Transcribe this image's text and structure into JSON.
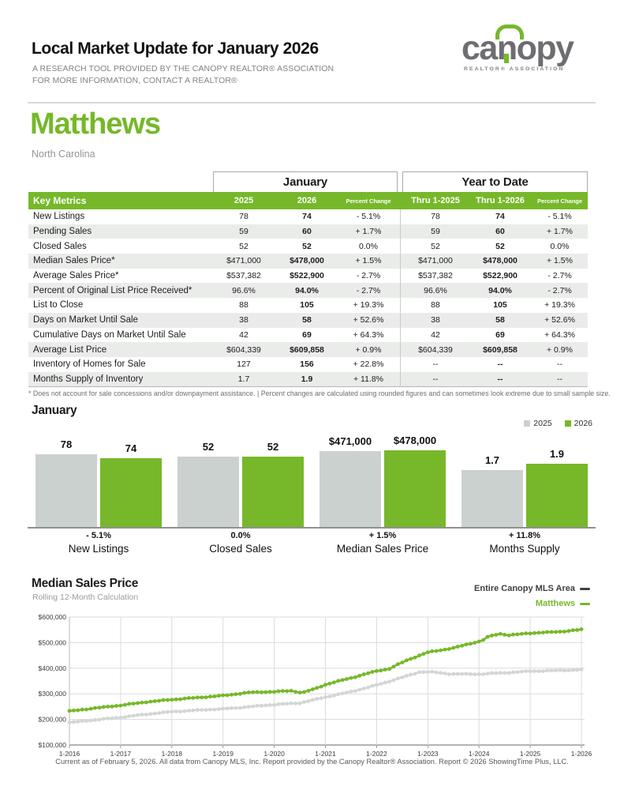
{
  "header": {
    "title": "Local Market Update for January 2026",
    "subtitle1": "A RESEARCH TOOL PROVIDED BY THE CANOPY REALTOR® ASSOCIATION",
    "subtitle2": "FOR MORE INFORMATION, CONTACT A REALTOR®"
  },
  "logo": {
    "wordmark_left": "ca",
    "wordmark_n": "n",
    "wordmark_right": "opy",
    "tagline": "REALTOR® ASSOCIATION"
  },
  "location": {
    "city": "Matthews",
    "state": "North Carolina"
  },
  "colors": {
    "green": "#76b82a",
    "bar_gray": "#cbd1ce",
    "line_gray": "#d3d7d4",
    "dark": "#404041"
  },
  "table": {
    "group_headers": [
      "January",
      "Year to Date"
    ],
    "key_metrics_label": "Key Metrics",
    "columns": [
      "2025",
      "2026",
      "Percent Change",
      "Thru 1-2025",
      "Thru 1-2026",
      "Percent Change"
    ],
    "rows": [
      {
        "metric": "New Listings",
        "values": [
          "78",
          "74",
          "- 5.1%",
          "78",
          "74",
          "- 5.1%"
        ]
      },
      {
        "metric": "Pending Sales",
        "values": [
          "59",
          "60",
          "+ 1.7%",
          "59",
          "60",
          "+ 1.7%"
        ]
      },
      {
        "metric": "Closed Sales",
        "values": [
          "52",
          "52",
          "0.0%",
          "52",
          "52",
          "0.0%"
        ]
      },
      {
        "metric": "Median Sales Price*",
        "values": [
          "$471,000",
          "$478,000",
          "+ 1.5%",
          "$471,000",
          "$478,000",
          "+ 1.5%"
        ]
      },
      {
        "metric": "Average Sales Price*",
        "values": [
          "$537,382",
          "$522,900",
          "- 2.7%",
          "$537,382",
          "$522,900",
          "- 2.7%"
        ]
      },
      {
        "metric": "Percent of Original List Price Received*",
        "values": [
          "96.6%",
          "94.0%",
          "- 2.7%",
          "96.6%",
          "94.0%",
          "- 2.7%"
        ]
      },
      {
        "metric": "List to Close",
        "values": [
          "88",
          "105",
          "+ 19.3%",
          "88",
          "105",
          "+ 19.3%"
        ]
      },
      {
        "metric": "Days on Market Until Sale",
        "values": [
          "38",
          "58",
          "+ 52.6%",
          "38",
          "58",
          "+ 52.6%"
        ]
      },
      {
        "metric": "Cumulative Days on Market Until Sale",
        "values": [
          "42",
          "69",
          "+ 64.3%",
          "42",
          "69",
          "+ 64.3%"
        ]
      },
      {
        "metric": "Average List Price",
        "values": [
          "$604,339",
          "$609,858",
          "+ 0.9%",
          "$604,339",
          "$609,858",
          "+ 0.9%"
        ]
      },
      {
        "metric": "Inventory of Homes for Sale",
        "values": [
          "127",
          "156",
          "+ 22.8%",
          "--",
          "--",
          "--"
        ]
      },
      {
        "metric": "Months Supply of Inventory",
        "values": [
          "1.7",
          "1.9",
          "+ 11.8%",
          "--",
          "--",
          "--"
        ]
      }
    ],
    "footnote": "* Does not account for sale concessions and/or downpayment assistance.  |  Percent changes are calculated using rounded figures and can sometimes look extreme due to small sample size."
  },
  "chart_data": [
    {
      "type": "bar",
      "title": "January",
      "legend": [
        "2025",
        "2026"
      ],
      "categories": [
        "New Listings",
        "Closed Sales",
        "Median Sales Price",
        "Months Supply"
      ],
      "series": [
        {
          "name": "2025",
          "values": [
            78,
            52,
            471000,
            1.7
          ]
        },
        {
          "name": "2026",
          "values": [
            74,
            52,
            478000,
            1.9
          ]
        }
      ],
      "groups": [
        {
          "label": "New Listings",
          "change": "- 5.1%",
          "display": [
            "78",
            "74"
          ],
          "values": [
            78,
            74
          ]
        },
        {
          "label": "Closed Sales",
          "change": "0.0%",
          "display": [
            "52",
            "52"
          ],
          "values": [
            52,
            52
          ]
        },
        {
          "label": "Median Sales Price",
          "change": "+ 1.5%",
          "display": [
            "$471,000",
            "$478,000"
          ],
          "values": [
            471000,
            478000
          ]
        },
        {
          "label": "Months Supply",
          "change": "+ 11.8%",
          "display": [
            "1.7",
            "1.9"
          ],
          "values": [
            1.7,
            1.9
          ]
        }
      ]
    },
    {
      "type": "line",
      "title": "Median Sales Price",
      "subtitle": "Rolling 12-Month Calculation",
      "ylabels": [
        "$600,000",
        "$500,000",
        "$400,000",
        "$300,000",
        "$200,000",
        "$100,000"
      ],
      "ylim": [
        100000,
        600000
      ],
      "xlabels": [
        "1-2016",
        "1-2017",
        "1-2018",
        "1-2019",
        "1-2020",
        "1-2021",
        "1-2022",
        "1-2023",
        "1-2024",
        "1-2025",
        "1-2026"
      ],
      "series": [
        {
          "name": "Entire Canopy MLS Area",
          "color_key": "dark",
          "line_color_key": "line_gray",
          "anchors": [
            [
              2016.0,
              188000
            ],
            [
              2016.5,
              198000
            ],
            [
              2017.0,
              208000
            ],
            [
              2017.5,
              220000
            ],
            [
              2018.0,
              230000
            ],
            [
              2018.5,
              236000
            ],
            [
              2019.0,
              241000
            ],
            [
              2019.5,
              249000
            ],
            [
              2020.0,
              258000
            ],
            [
              2020.5,
              264000
            ],
            [
              2021.0,
              287000
            ],
            [
              2021.5,
              308000
            ],
            [
              2022.0,
              334000
            ],
            [
              2022.5,
              364000
            ],
            [
              2022.85,
              386000
            ],
            [
              2023.1,
              385000
            ],
            [
              2023.4,
              378000
            ],
            [
              2023.7,
              377000
            ],
            [
              2024.0,
              377000
            ],
            [
              2024.5,
              382000
            ],
            [
              2025.0,
              388000
            ],
            [
              2025.5,
              391000
            ],
            [
              2026.0,
              394000
            ]
          ]
        },
        {
          "name": "Matthews",
          "color_key": "green",
          "line_color_key": "green",
          "anchors": [
            [
              2016.0,
              232000
            ],
            [
              2016.5,
              244000
            ],
            [
              2017.0,
              255000
            ],
            [
              2017.5,
              268000
            ],
            [
              2018.0,
              277500
            ],
            [
              2018.5,
              285000
            ],
            [
              2019.0,
              293000
            ],
            [
              2019.5,
              305000
            ],
            [
              2019.75,
              307000
            ],
            [
              2020.0,
              308000
            ],
            [
              2020.33,
              312000
            ],
            [
              2020.55,
              304000
            ],
            [
              2020.8,
              320000
            ],
            [
              2021.0,
              336000
            ],
            [
              2021.5,
              362000
            ],
            [
              2022.0,
              389000
            ],
            [
              2022.25,
              398000
            ],
            [
              2022.6,
              432000
            ],
            [
              2023.0,
              462000
            ],
            [
              2023.3,
              472000
            ],
            [
              2023.5,
              479000
            ],
            [
              2023.9,
              500000
            ],
            [
              2024.05,
              506000
            ],
            [
              2024.17,
              522000
            ],
            [
              2024.4,
              535000
            ],
            [
              2024.58,
              529000
            ],
            [
              2024.8,
              533000
            ],
            [
              2025.0,
              537000
            ],
            [
              2025.3,
              540000
            ],
            [
              2025.6,
              543000
            ],
            [
              2025.85,
              548000
            ],
            [
              2026.0,
              551000
            ]
          ]
        }
      ]
    }
  ],
  "footer": "Current as of February 5, 2026. All data from Canopy MLS, Inc. Report provided by the Canopy Realtor® Association. Report © 2026 ShowingTime Plus, LLC."
}
